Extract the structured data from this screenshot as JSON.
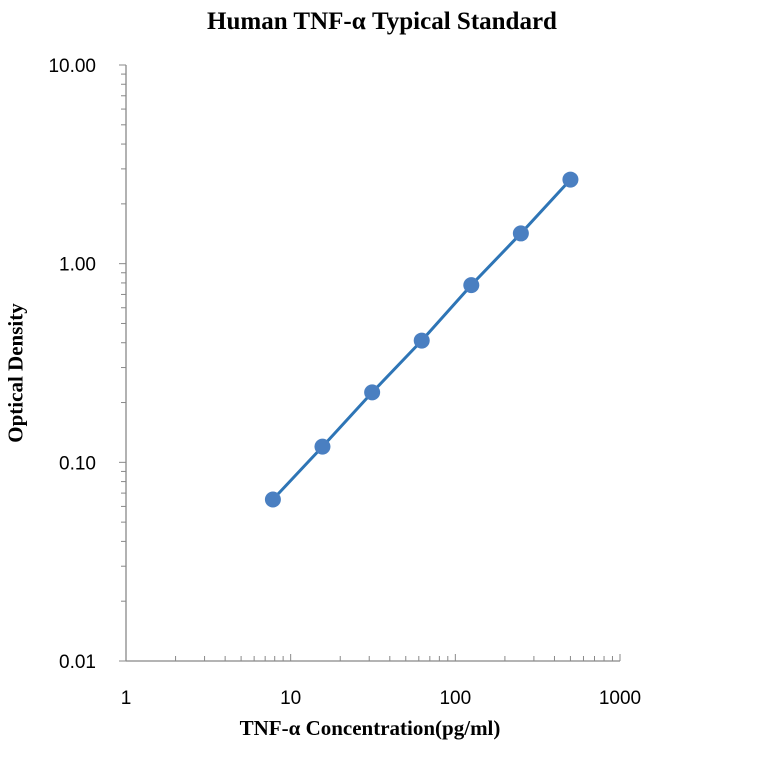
{
  "chart_data": {
    "type": "scatter",
    "title": "Human TNF-α Typical Standard",
    "xlabel": "TNF-α Concentration(pg/ml)",
    "ylabel": "Optical Density",
    "x_scale": "log",
    "y_scale": "log",
    "xlim": [
      1,
      1000
    ],
    "ylim": [
      0.01,
      10
    ],
    "x_ticks": [
      {
        "value": 1,
        "label": "1"
      },
      {
        "value": 10,
        "label": "10"
      },
      {
        "value": 100,
        "label": "100"
      },
      {
        "value": 1000,
        "label": "1000"
      }
    ],
    "y_ticks": [
      {
        "value": 0.01,
        "label": "0.01"
      },
      {
        "value": 0.1,
        "label": "0.10"
      },
      {
        "value": 1,
        "label": "1.00"
      },
      {
        "value": 10,
        "label": "10.00"
      }
    ],
    "grid": false,
    "legend": "none",
    "series": [
      {
        "color": "#4a7fc1",
        "line_color": "#2e75b6",
        "x": [
          7.8,
          15.6,
          31.25,
          62.5,
          125,
          250,
          500
        ],
        "y": [
          0.065,
          0.12,
          0.225,
          0.41,
          0.78,
          1.42,
          2.65
        ]
      }
    ]
  }
}
